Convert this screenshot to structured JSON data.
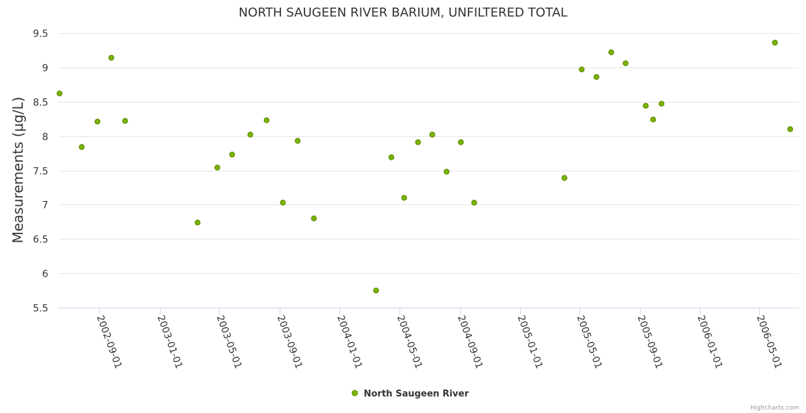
{
  "chart_data": {
    "type": "scatter",
    "title": "NORTH SAUGEEN RIVER BARIUM, UNFILTERED TOTAL",
    "xlabel": "",
    "ylabel": "Measurements (µg/L)",
    "ylim": [
      5.5,
      9.5
    ],
    "yticks": [
      "5.5",
      "6",
      "6.5",
      "7",
      "7.5",
      "8",
      "8.5",
      "9",
      "9.5"
    ],
    "xlim": [
      "2002-06-10",
      "2006-07-21"
    ],
    "xticks": [
      "2002-09-01",
      "2003-01-01",
      "2003-05-01",
      "2003-09-01",
      "2004-01-01",
      "2004-05-01",
      "2004-09-01",
      "2005-01-01",
      "2005-05-01",
      "2005-09-01",
      "2006-01-01",
      "2006-05-01"
    ],
    "grid": true,
    "legend_position": "bottom-center",
    "series": [
      {
        "name": "North Saugeen River",
        "color": "#7cb500",
        "stroke": "#5b8c00",
        "points": [
          {
            "x": "2002-06-12",
            "y": 8.62
          },
          {
            "x": "2002-07-27",
            "y": 7.84
          },
          {
            "x": "2002-08-28",
            "y": 8.21
          },
          {
            "x": "2002-09-25",
            "y": 9.14
          },
          {
            "x": "2002-10-23",
            "y": 8.22
          },
          {
            "x": "2003-03-19",
            "y": 6.74
          },
          {
            "x": "2003-04-28",
            "y": 7.54
          },
          {
            "x": "2003-05-28",
            "y": 7.73
          },
          {
            "x": "2003-07-04",
            "y": 8.02
          },
          {
            "x": "2003-08-06",
            "y": 8.23
          },
          {
            "x": "2003-09-08",
            "y": 7.03
          },
          {
            "x": "2003-10-08",
            "y": 7.93
          },
          {
            "x": "2003-11-10",
            "y": 6.8
          },
          {
            "x": "2004-03-15",
            "y": 5.75
          },
          {
            "x": "2004-04-15",
            "y": 7.69
          },
          {
            "x": "2004-05-11",
            "y": 7.1
          },
          {
            "x": "2004-06-08",
            "y": 7.91
          },
          {
            "x": "2004-07-07",
            "y": 8.02
          },
          {
            "x": "2004-08-05",
            "y": 7.48
          },
          {
            "x": "2004-09-03",
            "y": 7.91
          },
          {
            "x": "2004-09-30",
            "y": 7.03
          },
          {
            "x": "2005-04-01",
            "y": 7.39
          },
          {
            "x": "2005-05-06",
            "y": 8.97
          },
          {
            "x": "2005-06-05",
            "y": 8.86
          },
          {
            "x": "2005-07-05",
            "y": 9.22
          },
          {
            "x": "2005-08-03",
            "y": 9.06
          },
          {
            "x": "2005-09-13",
            "y": 8.44
          },
          {
            "x": "2005-09-28",
            "y": 8.24
          },
          {
            "x": "2005-10-15",
            "y": 8.47
          },
          {
            "x": "2006-06-02",
            "y": 9.36
          },
          {
            "x": "2006-07-03",
            "y": 8.1
          }
        ]
      }
    ]
  },
  "credits": "Highcharts.com"
}
